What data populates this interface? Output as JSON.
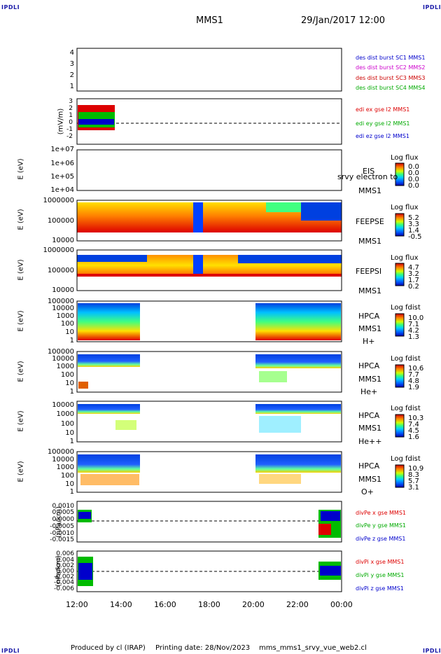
{
  "corner_label": "IPDLI",
  "header": {
    "title": "MMS1",
    "datetime": "29/Jan/2017 12:00"
  },
  "footer": {
    "produced_by": "Produced by cl (IRAP)",
    "printing_date": "Printing date: 28/Nov/2023",
    "filename": "mms_mms1_srvy_vue_web2.cl"
  },
  "colors": {
    "c1": "#0000cc",
    "c2": "#cc00cc",
    "c3": "#cc0000",
    "c4": "#00bb00",
    "x": "#dd0000",
    "y": "#00bb00",
    "z": "#0000cc"
  },
  "chart_data": {
    "type": "multi-panel time series",
    "x_ticks": [
      "12:00",
      "14:00",
      "16:00",
      "18:00",
      "20:00",
      "22:00",
      "00:00"
    ],
    "panels": [
      {
        "id": "des",
        "type": "line",
        "ylabel": "",
        "yticks": [
          "1",
          "2",
          "3",
          "4"
        ],
        "legend": [
          "des dist burst SC1 MMS1",
          "des dist burst SC2 MMS2",
          "des dist burst SC3 MMS3",
          "des dist burst SC4 MMS4"
        ]
      },
      {
        "id": "edi",
        "type": "line",
        "ylabel": "(mV/m)",
        "yticks": [
          "-2",
          "-1",
          "0",
          "1",
          "2",
          "3"
        ],
        "legend": [
          "edi ex gse l2 MMS1",
          "edi ey gse l2 MMS1",
          "edi ez gse l2 MMS1"
        ],
        "data_end": "13:50"
      },
      {
        "id": "eis",
        "type": "heatmap",
        "ylabel": "E (eV)",
        "yticks": [
          "1e+04",
          "1e+05",
          "1e+06",
          "1e+07"
        ],
        "labels": [
          "EIS",
          "srvy electron to",
          "MMS1"
        ],
        "colorbar_title": "Log flux",
        "colorbar_ticks": [
          "0.0",
          "0.0",
          "0.0",
          "0.0"
        ]
      },
      {
        "id": "feepse",
        "type": "heatmap",
        "ylabel": "E (eV)",
        "yticks": [
          "10000",
          "100000",
          "1000000"
        ],
        "labels": [
          "FEEPSE",
          "MMS1"
        ],
        "colorbar_title": "Log flux",
        "colorbar_ticks": [
          "5.2",
          "3.3",
          "1.4",
          "-0.5"
        ]
      },
      {
        "id": "feepsi",
        "type": "heatmap",
        "ylabel": "E (eV)",
        "yticks": [
          "10000",
          "100000",
          "1000000"
        ],
        "labels": [
          "FEEPSI",
          "MMS1"
        ],
        "colorbar_title": "Log flux",
        "colorbar_ticks": [
          "4.7",
          "3.2",
          "1.7",
          "0.2"
        ]
      },
      {
        "id": "hpca_h",
        "type": "heatmap",
        "ylabel": "E (eV)",
        "yticks": [
          "1",
          "10",
          "100",
          "1000",
          "10000",
          "100000"
        ],
        "labels": [
          "HPCA",
          "MMS1",
          "H+"
        ],
        "colorbar_title": "Log fdist",
        "colorbar_ticks": [
          "10.0",
          "7.1",
          "4.2",
          "1.3"
        ]
      },
      {
        "id": "hpca_he",
        "type": "heatmap",
        "ylabel": "E (eV)",
        "yticks": [
          "1",
          "10",
          "100",
          "1000",
          "10000",
          "100000"
        ],
        "labels": [
          "HPCA",
          "MMS1",
          "He+"
        ],
        "colorbar_title": "Log fdist",
        "colorbar_ticks": [
          "10.6",
          "7.7",
          "4.8",
          "1.9"
        ]
      },
      {
        "id": "hpca_hepp",
        "type": "heatmap",
        "ylabel": "E (eV)",
        "yticks": [
          "1",
          "10",
          "100",
          "1000",
          "10000"
        ],
        "labels": [
          "HPCA",
          "MMS1",
          "He++"
        ],
        "colorbar_title": "Log fdist",
        "colorbar_ticks": [
          "10.3",
          "7.4",
          "4.5",
          "1.6"
        ]
      },
      {
        "id": "hpca_o",
        "type": "heatmap",
        "ylabel": "E (eV)",
        "yticks": [
          "1",
          "10",
          "100",
          "1000",
          "10000",
          "100000"
        ],
        "labels": [
          "HPCA",
          "MMS1",
          "O+"
        ],
        "colorbar_title": "Log fdist",
        "colorbar_ticks": [
          "10.9",
          "8.3",
          "5.7",
          "3.1"
        ]
      },
      {
        "id": "divpe",
        "type": "line",
        "ylabel": "(nPa/km)",
        "yticks": [
          "-0.0015",
          "-0.0010",
          "-0.0005",
          "0.0000",
          "0.0005",
          "0.0010"
        ],
        "legend": [
          "divPe x gse MMS1",
          "divPe y gse MMS1",
          "divPe z gse MMS1"
        ]
      },
      {
        "id": "divpi",
        "type": "line",
        "ylabel": "(nPa/km)",
        "yticks": [
          "-0.006",
          "-0.004",
          "-0.002",
          "0.000",
          "0.002",
          "0.004",
          "0.006"
        ],
        "legend": [
          "divPi x gse MMS1",
          "divPi y gse MMS1",
          "divPi z gse MMS1"
        ]
      }
    ]
  }
}
